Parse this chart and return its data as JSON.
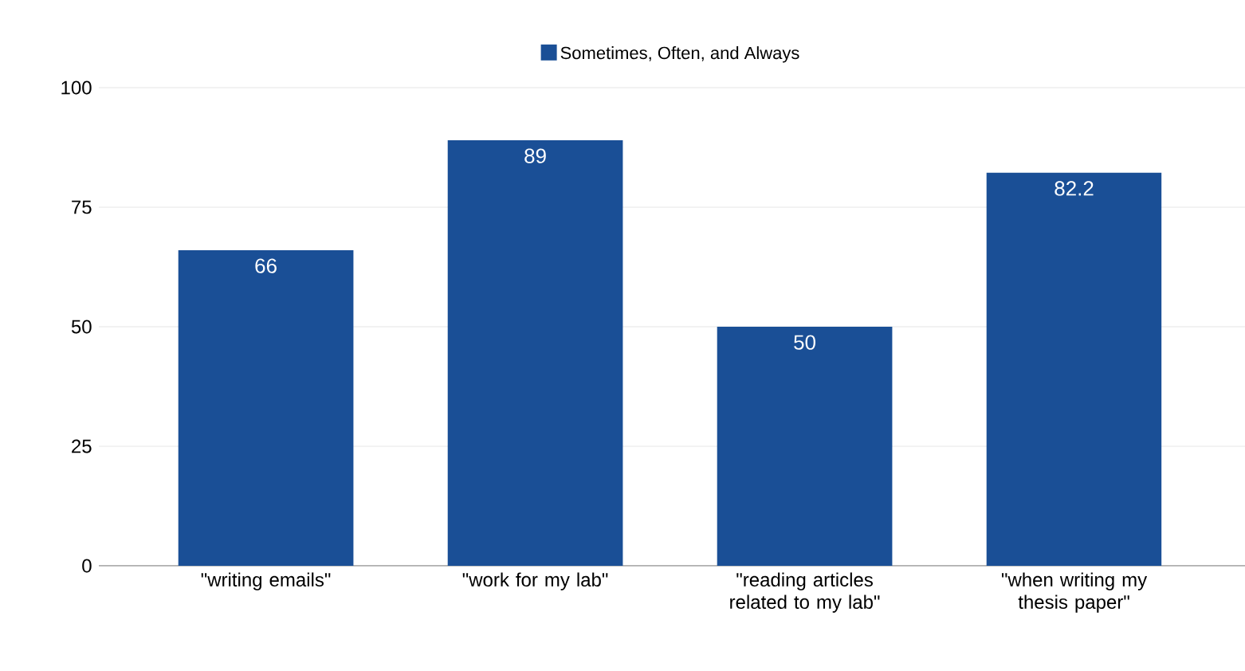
{
  "chart_data": {
    "type": "bar",
    "categories": [
      "\"writing emails\"",
      "\"work for my lab\"",
      "\"reading articles related to my lab\"",
      "\"when writing my thesis paper\""
    ],
    "series": [
      {
        "name": "Sometimes, Often, and Always",
        "color": "#1a4f96",
        "values": [
          66,
          89,
          50,
          82.2
        ]
      }
    ],
    "ylim": [
      0,
      100
    ],
    "yticks": [
      0,
      25,
      50,
      75,
      100
    ],
    "grid": "y",
    "legend": "top",
    "data_labels": true
  }
}
